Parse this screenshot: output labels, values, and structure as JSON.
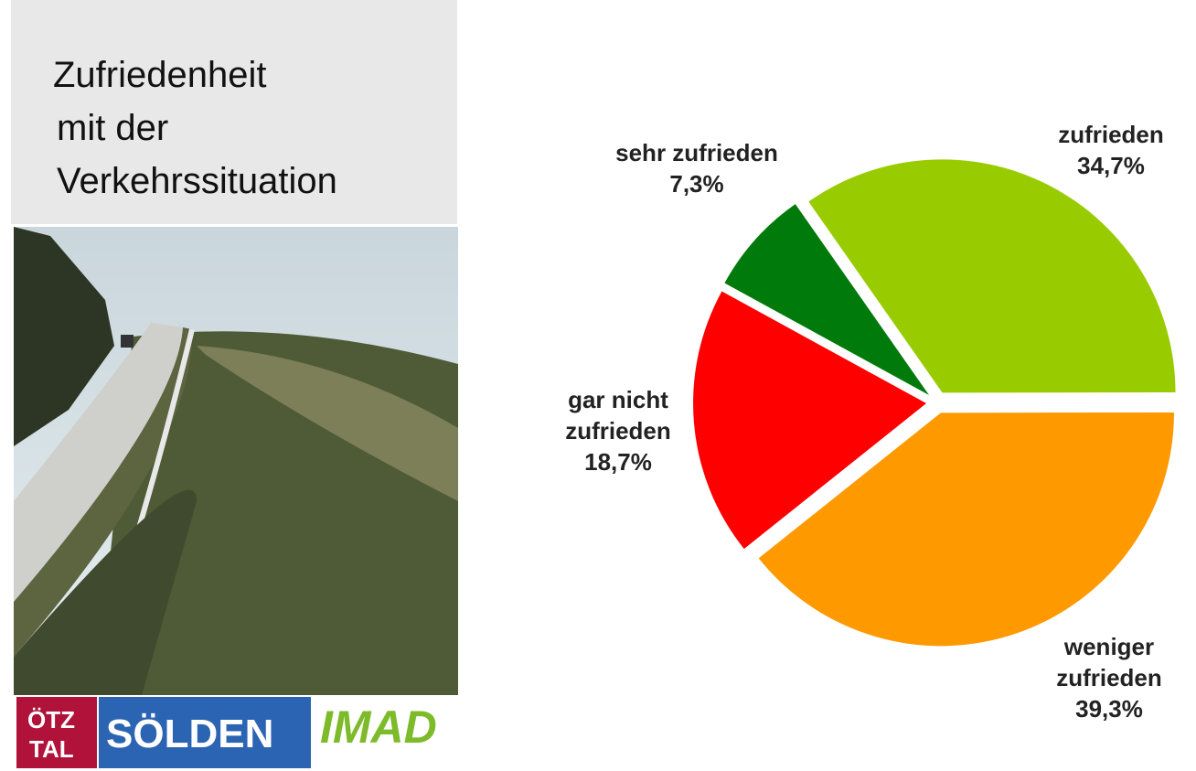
{
  "title_lines": [
    "Zufriedenheit",
    "mit der",
    "Verkehrssituation"
  ],
  "logos": {
    "oetztal": [
      "ÖTZ",
      "TAL"
    ],
    "soelden": "SÖLDEN",
    "imad": "IMAD"
  },
  "chart_data": {
    "type": "pie",
    "categories": [
      "zufrieden",
      "weniger zufrieden",
      "gar nicht zufrieden",
      "sehr zufrieden"
    ],
    "values": [
      34.7,
      39.3,
      18.7,
      7.3
    ],
    "value_labels": [
      "34,7%",
      "39,3%",
      "18,7%",
      "7,3%"
    ],
    "colors": [
      "#99cc00",
      "#ff9900",
      "#ff0000",
      "#007a0a"
    ]
  }
}
